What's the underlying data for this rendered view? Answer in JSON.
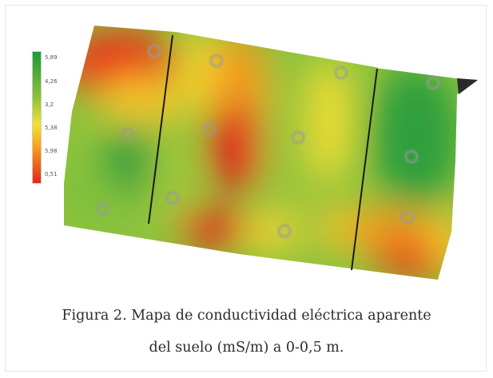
{
  "legend": {
    "labels": [
      "5,89",
      "4,26",
      "3,2",
      "5,38",
      "5,98",
      "0,51"
    ]
  },
  "caption": {
    "line1": "Figura 2. Mapa de conductividad eléctrica aparente",
    "line2": "del suelo (mS/m) a 0-0,5 m."
  },
  "colors": {
    "high": "#1a9a3a",
    "mid": "#f2e233",
    "low": "#e3271c"
  },
  "icons": [
    "sample-point-marker"
  ]
}
